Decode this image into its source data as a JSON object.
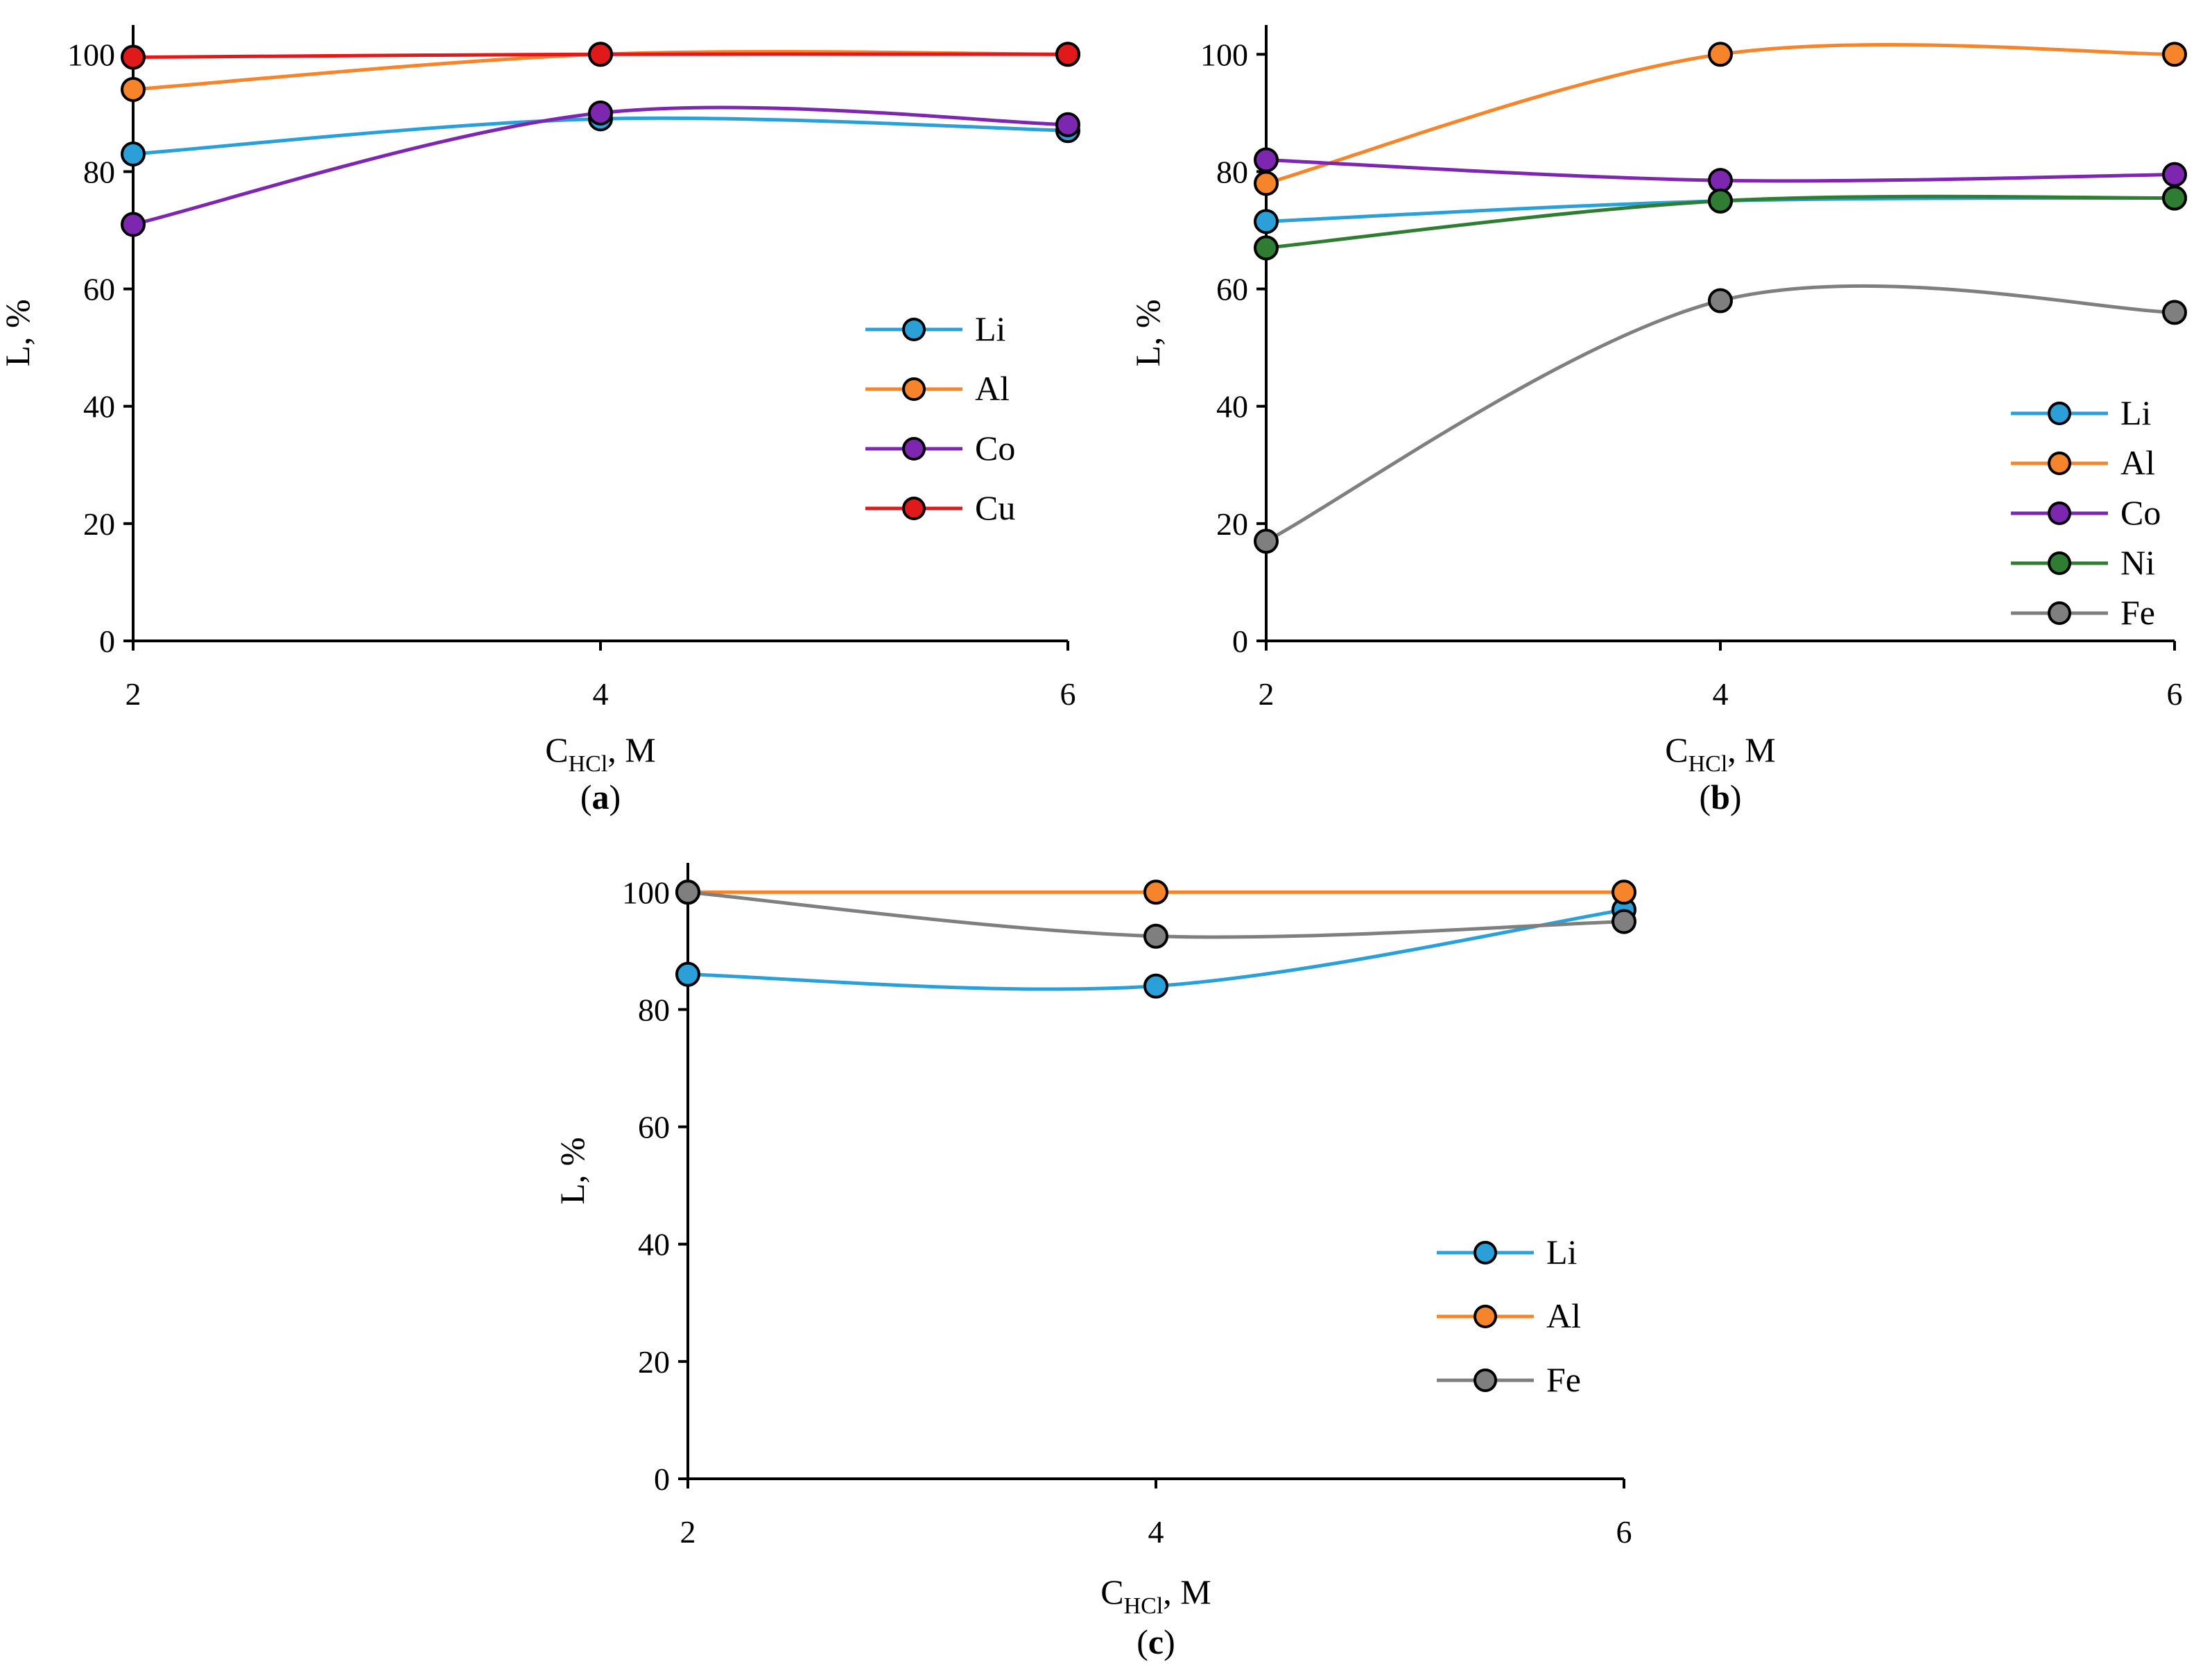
{
  "chart_data": [
    {
      "id": "a",
      "type": "line",
      "caption_open": "(",
      "caption_letter": "a",
      "caption_close": ")",
      "xlabel_main": "C",
      "xlabel_sub": "HCl",
      "xlabel_tail": ", M",
      "ylabel": "L, %",
      "x": [
        2,
        4,
        6
      ],
      "xlim": [
        2,
        6
      ],
      "ylim": [
        0,
        105
      ],
      "xticks": [
        2,
        4,
        6
      ],
      "yticks": [
        0,
        20,
        40,
        60,
        80,
        100
      ],
      "legend_position": "right-middle",
      "series": [
        {
          "name": "Li",
          "color": "#2A9FD8",
          "values": [
            83,
            89,
            87
          ]
        },
        {
          "name": "Al",
          "color": "#F5842B",
          "values": [
            94,
            100,
            100
          ]
        },
        {
          "name": "Co",
          "color": "#7D26AF",
          "values": [
            71,
            90,
            88
          ]
        },
        {
          "name": "Cu",
          "color": "#E0191B",
          "values": [
            99.5,
            100,
            100
          ]
        }
      ]
    },
    {
      "id": "b",
      "type": "line",
      "caption_open": "(",
      "caption_letter": "b",
      "caption_close": ")",
      "xlabel_main": "C",
      "xlabel_sub": "HCl",
      "xlabel_tail": ", M",
      "ylabel": "L, %",
      "x": [
        2,
        4,
        6
      ],
      "xlim": [
        2,
        6
      ],
      "ylim": [
        0,
        105
      ],
      "xticks": [
        2,
        4,
        6
      ],
      "yticks": [
        0,
        20,
        40,
        60,
        80,
        100
      ],
      "legend_position": "bottom-right",
      "series": [
        {
          "name": "Li",
          "color": "#2A9FD8",
          "values": [
            71.5,
            75,
            75.5
          ]
        },
        {
          "name": "Al",
          "color": "#F5842B",
          "values": [
            78,
            100,
            100
          ]
        },
        {
          "name": "Co",
          "color": "#7D26AF",
          "values": [
            82,
            78.5,
            79.5
          ]
        },
        {
          "name": "Ni",
          "color": "#2E7D32",
          "values": [
            67,
            75,
            75.5
          ]
        },
        {
          "name": "Fe",
          "color": "#7F7F7F",
          "values": [
            17,
            58,
            56
          ]
        }
      ]
    },
    {
      "id": "c",
      "type": "line",
      "caption_open": "(",
      "caption_letter": "c",
      "caption_close": ")",
      "xlabel_main": "C",
      "xlabel_sub": "HCl",
      "xlabel_tail": ", M",
      "ylabel": "L, %",
      "x": [
        2,
        4,
        6
      ],
      "xlim": [
        2,
        6
      ],
      "ylim": [
        0,
        105
      ],
      "xticks": [
        2,
        4,
        6
      ],
      "yticks": [
        0,
        20,
        40,
        60,
        80,
        100
      ],
      "legend_position": "right-middle",
      "series": [
        {
          "name": "Li",
          "color": "#2A9FD8",
          "values": [
            86,
            84,
            97
          ]
        },
        {
          "name": "Al",
          "color": "#F5842B",
          "values": [
            100,
            100,
            100
          ]
        },
        {
          "name": "Fe",
          "color": "#7F7F7F",
          "values": [
            100,
            92.5,
            95
          ]
        }
      ]
    }
  ]
}
